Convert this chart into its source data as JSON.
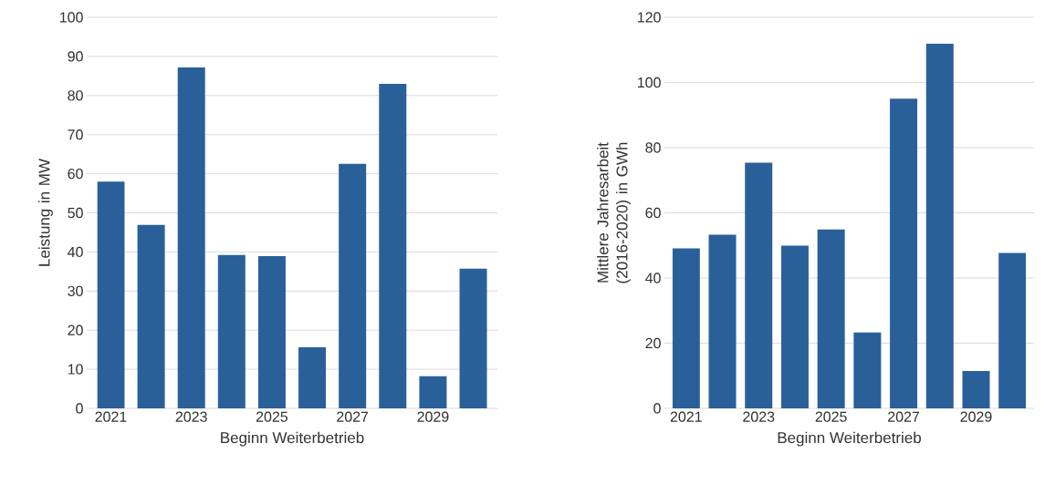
{
  "chart_data": [
    {
      "type": "bar",
      "categories": [
        "2021",
        null,
        "2023",
        null,
        "2025",
        null,
        "2027",
        null,
        "2029",
        null
      ],
      "values": [
        58.0,
        46.9,
        87.2,
        39.2,
        38.9,
        15.6,
        62.5,
        83.0,
        8.2,
        35.7
      ],
      "color": "#2a6099",
      "ylim": [
        0,
        100
      ],
      "yticks": [
        0,
        10,
        20,
        30,
        40,
        50,
        60,
        70,
        80,
        90,
        100
      ],
      "grid": "y",
      "xlabel": "Beginn Weiterbetrieb",
      "ylabel": "Leistung in MW"
    },
    {
      "type": "bar",
      "categories": [
        "2021",
        null,
        "2023",
        null,
        "2025",
        null,
        "2027",
        null,
        "2029",
        null
      ],
      "values": [
        49.1,
        53.3,
        75.4,
        49.9,
        54.9,
        23.3,
        95.0,
        111.9,
        11.5,
        47.7
      ],
      "color": "#2a6099",
      "ylim": [
        0,
        120
      ],
      "yticks": [
        0,
        20,
        40,
        60,
        80,
        100,
        120
      ],
      "grid": "y",
      "xlabel": "Beginn Weiterbetrieb",
      "ylabel": "Mittlere Jahresarbeit (2016-2020) in GWh"
    }
  ]
}
